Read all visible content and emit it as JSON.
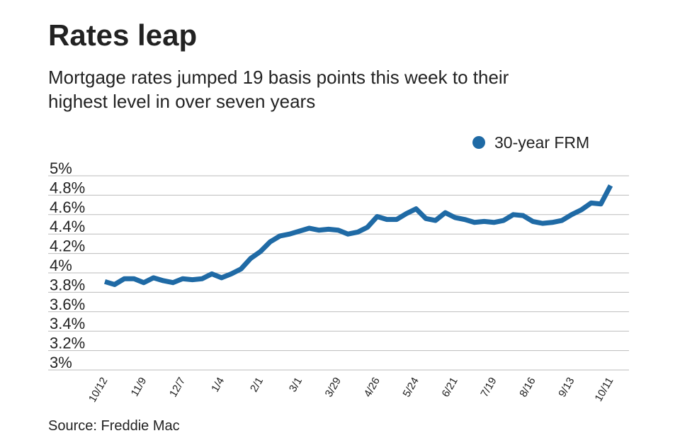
{
  "chart_data": {
    "type": "line",
    "title": "Rates leap",
    "subtitle": [
      "Mortgage rates jumped 19 basis points this week to their",
      "highest level in over seven years"
    ],
    "source": "Source: Freddie Mac",
    "categories": [
      "10/12",
      null,
      null,
      null,
      "11/9",
      null,
      null,
      null,
      "12/7",
      null,
      null,
      null,
      "1/4",
      null,
      null,
      null,
      "2/1",
      null,
      null,
      null,
      "3/1",
      null,
      null,
      null,
      "3/29",
      null,
      null,
      null,
      "4/26",
      null,
      null,
      null,
      "5/24",
      null,
      null,
      null,
      "6/21",
      null,
      null,
      null,
      "7/19",
      null,
      null,
      null,
      "8/16",
      null,
      null,
      null,
      "9/13",
      null,
      null,
      null,
      "10/11"
    ],
    "series": [
      {
        "name": "30-year FRM",
        "color": "#1f6aa5",
        "values": [
          3.91,
          3.88,
          3.94,
          3.94,
          3.9,
          3.95,
          3.92,
          3.9,
          3.94,
          3.93,
          3.94,
          3.99,
          3.95,
          3.99,
          4.04,
          4.15,
          4.22,
          4.32,
          4.38,
          4.4,
          4.43,
          4.46,
          4.44,
          4.45,
          4.44,
          4.4,
          4.42,
          4.47,
          4.58,
          4.55,
          4.55,
          4.61,
          4.66,
          4.56,
          4.54,
          4.62,
          4.57,
          4.55,
          4.52,
          4.53,
          4.52,
          4.54,
          4.6,
          4.59,
          4.53,
          4.51,
          4.52,
          4.54,
          4.6,
          4.65,
          4.72,
          4.71,
          4.9
        ]
      }
    ],
    "ylim": [
      3,
      5
    ],
    "yticks": [
      {
        "value": 5,
        "label": "5%"
      },
      {
        "value": 4.8,
        "label": "4.8%"
      },
      {
        "value": 4.6,
        "label": "4.6%"
      },
      {
        "value": 4.4,
        "label": "4.4%"
      },
      {
        "value": 4.2,
        "label": "4.2%"
      },
      {
        "value": 4,
        "label": "4%"
      },
      {
        "value": 3.8,
        "label": "3.8%"
      },
      {
        "value": 3.6,
        "label": "3.6%"
      },
      {
        "value": 3.4,
        "label": "3.4%"
      },
      {
        "value": 3.2,
        "label": "3.2%"
      },
      {
        "value": 3,
        "label": "3%"
      }
    ],
    "grid": true,
    "legend": "top-right"
  }
}
